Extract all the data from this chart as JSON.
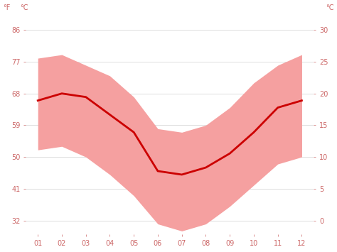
{
  "months": [
    1,
    2,
    3,
    4,
    5,
    6,
    7,
    8,
    9,
    10,
    11,
    12
  ],
  "month_labels": [
    "01",
    "02",
    "03",
    "04",
    "05",
    "06",
    "07",
    "08",
    "09",
    "10",
    "11",
    "12"
  ],
  "mean_f": [
    66,
    68,
    67,
    62,
    57,
    46,
    45,
    47,
    51,
    57,
    64,
    66
  ],
  "high_f": [
    76,
    77,
    74,
    71,
    65,
    57,
    56,
    57,
    61,
    68,
    73,
    76
  ],
  "low_f": [
    56,
    56,
    54,
    49,
    43,
    35,
    33,
    35,
    40,
    46,
    52,
    54
  ],
  "band_low_f": [
    52,
    53,
    50,
    45,
    39,
    31,
    29,
    31,
    36,
    42,
    48,
    50
  ],
  "band_high_f": [
    78,
    79,
    76,
    73,
    67,
    58,
    57,
    59,
    64,
    71,
    76,
    79
  ],
  "line_color": "#cc0000",
  "band_color": "#f5a0a0",
  "grid_color": "#dddddd",
  "axis_color": "#cc6666",
  "background_color": "#ffffff",
  "ylabel_left": "°F",
  "ylabel_right": "°C",
  "yticks_f": [
    32,
    41,
    50,
    59,
    68,
    77,
    86
  ],
  "yticks_c": [
    0,
    5,
    10,
    15,
    20,
    25,
    30
  ],
  "ylim_f": [
    28,
    90
  ]
}
